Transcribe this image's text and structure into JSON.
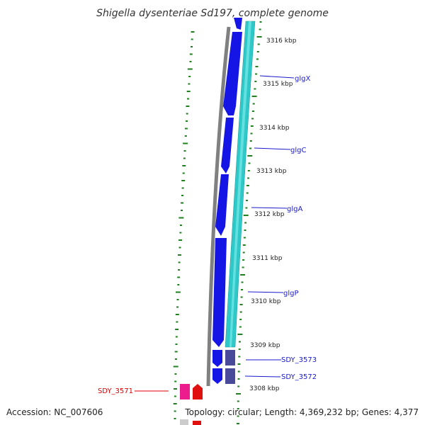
{
  "title": "Shigella dysenteriae Sd197, complete genome",
  "footer": {
    "accession": "Accession: NC_007606",
    "topology": "Topology: circular; Length: 4,369,232 bp; Genes: 4,377"
  },
  "colors": {
    "forward_cds": "#1515e6",
    "forward_cds_light": "#3f3fb0",
    "rrna_track": "#2ec8c8",
    "backbone": "#808080",
    "gc_skew": "#208020",
    "gene_label": "#1a1acc",
    "sdy_3571_label": "#dd0000",
    "sdy_3571_magenta": "#ec1c8c",
    "sdy_3571_red": "#e01010"
  },
  "ticks": [
    {
      "label": "3316 kbp"
    },
    {
      "label": "3315 kbp"
    },
    {
      "label": "3314 kbp"
    },
    {
      "label": "3313 kbp"
    },
    {
      "label": "3312 kbp"
    },
    {
      "label": "3311 kbp"
    },
    {
      "label": "3310 kbp"
    },
    {
      "label": "3309 kbp"
    },
    {
      "label": "3308 kbp"
    }
  ],
  "genes": [
    {
      "name": "glgX"
    },
    {
      "name": "glgC"
    },
    {
      "name": "glgA"
    },
    {
      "name": "glgP"
    },
    {
      "name": "SDY_3573"
    },
    {
      "name": "SDY_3572"
    },
    {
      "name": "SDY_3571"
    }
  ]
}
